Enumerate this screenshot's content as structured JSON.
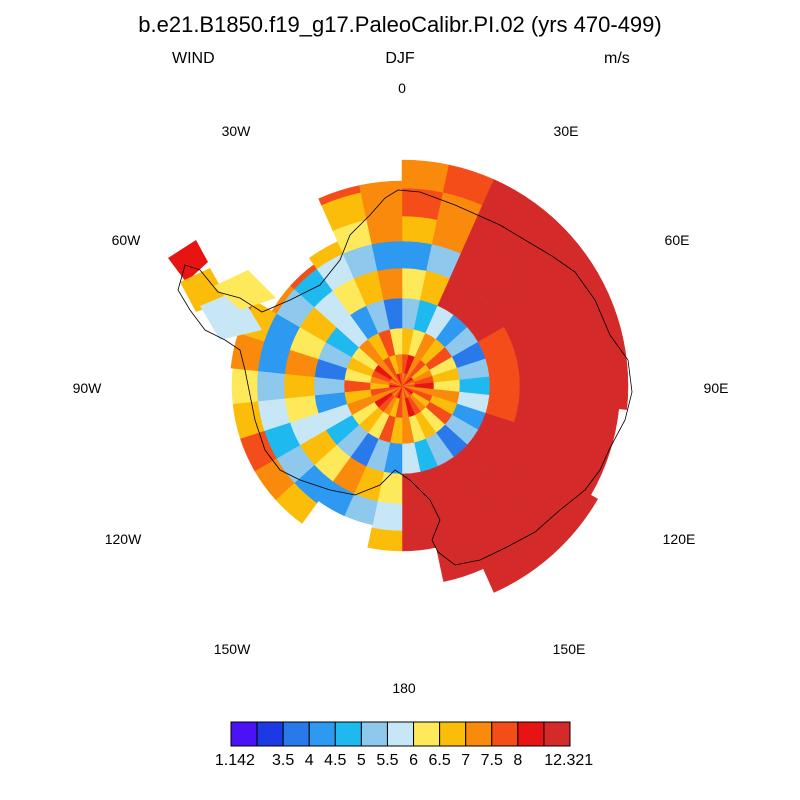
{
  "title": "b.e21.B1850.f19_g17.PaleoCalibr.PI.02 (yrs 470-499)",
  "left_label": "WIND",
  "center_label": "DJF",
  "right_label": "m/s",
  "longitude_labels": [
    "0",
    "30E",
    "60E",
    "90E",
    "120E",
    "150E",
    "180",
    "150W",
    "120W",
    "90W",
    "60W",
    "30W"
  ],
  "colorbar": {
    "colors": [
      "#4b12f5",
      "#1b3ae6",
      "#2a79eb",
      "#2d99f0",
      "#1eb9ef",
      "#8ec8ec",
      "#c7e7f6",
      "#fde95a",
      "#fbbd0a",
      "#f98a0b",
      "#f44d1a",
      "#e81414",
      "#d42a2a"
    ],
    "labels": [
      "1.142",
      "3.5",
      "4",
      "4.5",
      "5",
      "5.5",
      "6",
      "6.5",
      "7",
      "7.5",
      "8",
      "12.321"
    ],
    "ticks": [
      1.142,
      3.5,
      4,
      4.5,
      5,
      5.5,
      6,
      6.5,
      7,
      7.5,
      8,
      12.321
    ]
  },
  "colors": {
    "coastline": "#000000",
    "background": "#ffffff"
  }
}
